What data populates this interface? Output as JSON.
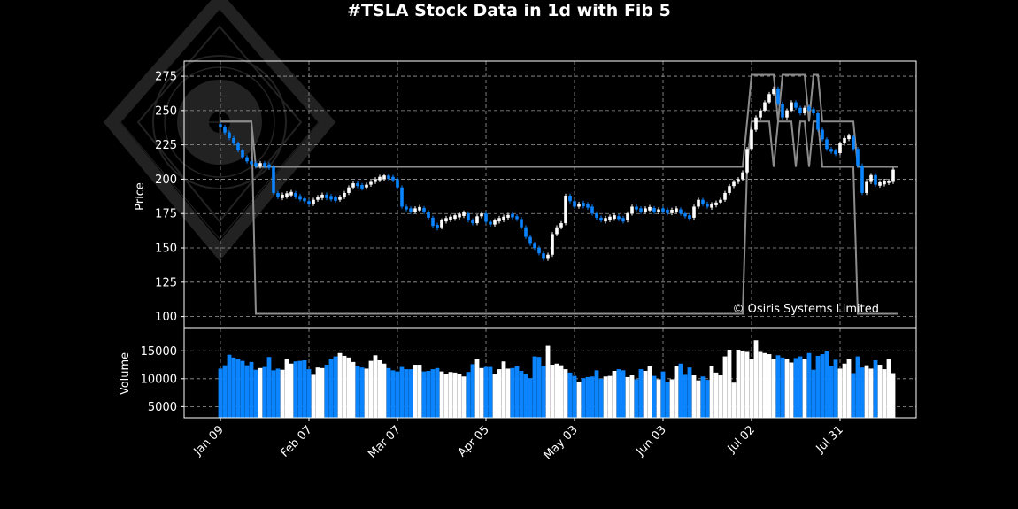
{
  "chart_data": {
    "type": "candlestick",
    "title": "#TSLA Stock Data in 1d with Fib 5",
    "copyright": "© Osiris Systems Limited",
    "price_panel": {
      "ylabel": "Price",
      "ylim": [
        92,
        286
      ],
      "yticks": [
        100,
        125,
        150,
        175,
        200,
        225,
        250,
        275
      ],
      "grid": true
    },
    "volume_panel": {
      "ylabel": "Volume",
      "ylim": [
        3000,
        19000
      ],
      "yticks": [
        5000,
        10000,
        15000
      ],
      "grid": true
    },
    "x_tick_labels": [
      {
        "index": 0,
        "label": "Jan 09"
      },
      {
        "index": 20,
        "label": "Feb 07"
      },
      {
        "index": 40,
        "label": "Mar 07"
      },
      {
        "index": 60,
        "label": "Apr 05"
      },
      {
        "index": 80,
        "label": "May 03"
      },
      {
        "index": 100,
        "label": "Jun 03"
      },
      {
        "index": 120,
        "label": "Jul 02"
      },
      {
        "index": 140,
        "label": "Jul 31"
      }
    ],
    "colors": {
      "up": "#ffffff",
      "down": "#0a84ff",
      "fib_line": "#8c8c8c",
      "grid": "#9a9a9a",
      "background": "#000000"
    },
    "close": [
      238,
      234,
      230,
      226,
      221,
      216,
      213,
      211,
      210,
      211,
      210,
      209,
      190,
      187,
      188,
      189,
      190,
      187,
      186,
      184,
      182,
      185,
      187,
      188,
      187,
      186,
      185,
      187,
      190,
      194,
      197,
      195,
      194,
      196,
      198,
      200,
      201,
      202,
      201,
      200,
      194,
      180,
      178,
      177,
      178,
      179,
      176,
      172,
      166,
      165,
      170,
      171,
      172,
      173,
      174,
      175,
      170,
      168,
      173,
      175,
      169,
      167,
      170,
      171,
      172,
      174,
      173,
      171,
      165,
      158,
      153,
      150,
      146,
      142,
      145,
      160,
      165,
      168,
      188,
      184,
      180,
      182,
      181,
      180,
      175,
      172,
      170,
      171,
      172,
      173,
      171,
      170,
      175,
      180,
      178,
      177,
      178,
      179,
      176,
      178,
      177,
      176,
      177,
      178,
      175,
      173,
      172,
      180,
      185,
      182,
      180,
      181,
      183,
      185,
      190,
      195,
      198,
      200,
      205,
      222,
      236,
      245,
      250,
      256,
      262,
      266,
      255,
      245,
      250,
      256,
      252,
      248,
      252,
      251,
      248,
      236,
      229,
      222,
      220,
      219,
      226,
      230,
      231,
      222,
      210,
      190,
      198,
      203,
      196,
      197,
      198,
      198,
      207
    ],
    "volume": [
      11800,
      12400,
      14300,
      13800,
      13600,
      13200,
      12400,
      13000,
      11600,
      11900,
      12100,
      13900,
      11500,
      11800,
      11600,
      13500,
      12700,
      13100,
      13200,
      13300,
      11700,
      10700,
      12000,
      11900,
      12500,
      13600,
      14000,
      14600,
      14100,
      13800,
      13000,
      12200,
      12000,
      11800,
      13200,
      14200,
      13300,
      12700,
      11900,
      11500,
      11300,
      12100,
      11700,
      11700,
      12500,
      12500,
      11300,
      11400,
      11700,
      11900,
      11300,
      10900,
      11200,
      11100,
      10900,
      10400,
      11200,
      12600,
      13500,
      11900,
      12100,
      12100,
      10800,
      11700,
      13100,
      11800,
      11900,
      12200,
      11400,
      10900,
      10100,
      14000,
      13900,
      12300,
      15900,
      12500,
      12700,
      12400,
      11700,
      11100,
      10500,
      9500,
      10100,
      10300,
      10400,
      11500,
      10000,
      10400,
      10500,
      11400,
      11700,
      11500,
      10300,
      10600,
      9900,
      11700,
      11400,
      12200,
      10500,
      9900,
      11300,
      9500,
      9900,
      12200,
      12700,
      10700,
      12000,
      10600,
      9700,
      10400,
      9800,
      12300,
      11100,
      10600,
      14000,
      15200,
      9300,
      15200,
      15000,
      14800,
      13500,
      16900,
      14800,
      14600,
      14400,
      13500,
      14200,
      13800,
      13600,
      12900,
      13700,
      14000,
      13600,
      14600,
      11600,
      14100,
      14400,
      15000,
      12300,
      13400,
      11800,
      12700,
      13500,
      11000,
      14000,
      12000,
      12400,
      11800,
      13300,
      12500,
      11700,
      13500,
      11000
    ],
    "fib_upper": [
      242,
      242,
      242,
      242,
      242,
      242,
      242,
      242,
      209,
      209,
      209,
      209,
      209,
      209,
      209,
      209,
      209,
      209,
      209,
      209,
      209,
      209,
      209,
      209,
      209,
      209,
      209,
      209,
      209,
      209,
      209,
      209,
      209,
      209,
      209,
      209,
      209,
      209,
      209,
      209,
      209,
      209,
      209,
      209,
      209,
      209,
      209,
      209,
      209,
      209,
      209,
      209,
      209,
      209,
      209,
      209,
      209,
      209,
      209,
      209,
      209,
      209,
      209,
      209,
      209,
      209,
      209,
      209,
      209,
      209,
      209,
      209,
      209,
      209,
      209,
      209,
      209,
      209,
      209,
      209,
      209,
      209,
      209,
      209,
      209,
      209,
      209,
      209,
      209,
      209,
      209,
      209,
      209,
      209,
      209,
      209,
      209,
      209,
      209,
      209,
      209,
      209,
      209,
      209,
      209,
      209,
      209,
      209,
      209,
      209,
      209,
      209,
      209,
      209,
      209,
      209,
      209,
      209,
      209,
      242,
      276,
      276,
      276,
      276,
      276,
      276,
      242,
      276,
      276,
      276,
      276,
      276,
      276,
      242,
      276,
      276,
      242,
      242,
      242,
      242,
      242,
      242,
      242,
      242,
      209,
      209,
      209,
      209,
      209,
      209,
      209,
      209,
      209,
      209
    ],
    "fib_lower": [
      242,
      242,
      242,
      242,
      242,
      242,
      242,
      242,
      102,
      102,
      102,
      102,
      102,
      102,
      102,
      102,
      102,
      102,
      102,
      102,
      102,
      102,
      102,
      102,
      102,
      102,
      102,
      102,
      102,
      102,
      102,
      102,
      102,
      102,
      102,
      102,
      102,
      102,
      102,
      102,
      102,
      102,
      102,
      102,
      102,
      102,
      102,
      102,
      102,
      102,
      102,
      102,
      102,
      102,
      102,
      102,
      102,
      102,
      102,
      102,
      102,
      102,
      102,
      102,
      102,
      102,
      102,
      102,
      102,
      102,
      102,
      102,
      102,
      102,
      102,
      102,
      102,
      102,
      102,
      102,
      102,
      102,
      102,
      102,
      102,
      102,
      102,
      102,
      102,
      102,
      102,
      102,
      102,
      102,
      102,
      102,
      102,
      102,
      102,
      102,
      102,
      102,
      102,
      102,
      102,
      102,
      102,
      102,
      102,
      102,
      102,
      102,
      102,
      102,
      102,
      102,
      102,
      102,
      102,
      209,
      242,
      242,
      242,
      242,
      242,
      209,
      242,
      242,
      242,
      242,
      209,
      242,
      242,
      209,
      242,
      242,
      209,
      209,
      209,
      209,
      209,
      209,
      209,
      209,
      102,
      102,
      102,
      102,
      102,
      102,
      102,
      102,
      102,
      102
    ]
  }
}
